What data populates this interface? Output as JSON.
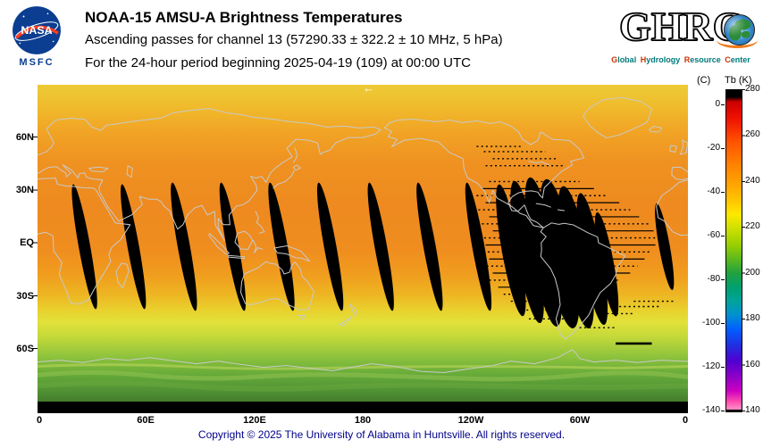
{
  "header": {
    "title": "NOAA-15 AMSU-A Brightness Temperatures",
    "line2": "Ascending passes for channel 13 (57290.33 ± 322.2 ± 10 MHz, 5 hPa)",
    "line3": "For the 24-hour period beginning 2025-04-19 (109) at 00:00 UTC",
    "nasa": {
      "wordmark": "NASA",
      "center": "MSFC"
    },
    "ghrc": {
      "wordmark": "GHRC",
      "sub_words": [
        "Global",
        "Hydrology",
        "Resource",
        "Center"
      ]
    }
  },
  "map": {
    "lat_labels": [
      "60N",
      "30N",
      "EQ",
      "30S",
      "60S"
    ],
    "lon_labels": [
      "0",
      "60E",
      "120E",
      "180",
      "120W",
      "60W",
      "0"
    ],
    "arrow_marker": "←"
  },
  "colorbar": {
    "unit_left": "(C)",
    "unit_right": "Tb (K)",
    "ticks_c": [
      "0",
      "-20",
      "-40",
      "-60",
      "-80",
      "-100",
      "-120",
      "-140"
    ],
    "ticks_k": [
      "280",
      "260",
      "240",
      "220",
      "200",
      "180",
      "160",
      "140"
    ]
  },
  "footer": {
    "copyright": "Copyright © 2025 The University of Alabama in Huntsville. All rights reserved."
  },
  "chart_data": {
    "type": "heatmap",
    "title": "NOAA-15 AMSU-A Brightness Temperatures",
    "subtitle": "Ascending passes for channel 13 (57290.33 ± 322.2 ± 10 MHz, 5 hPa)",
    "period": "24-hour period beginning 2025-04-19 (109) at 00:00 UTC",
    "satellite": "NOAA-15",
    "instrument": "AMSU-A",
    "channel": "13",
    "frequency_mhz": "57290.33 ± 322.2 ± 10",
    "pressure_level_hpa": 5,
    "projection": "equirectangular, longitude 0-360E, latitude 90N-90S",
    "x_ticks_deg": [
      0,
      60,
      120,
      180,
      240,
      300,
      360
    ],
    "x_tick_labels": [
      "0",
      "60E",
      "120E",
      "180",
      "120W",
      "60W",
      "0"
    ],
    "y_ticks_deg": [
      60,
      30,
      0,
      -30,
      -60
    ],
    "y_tick_labels": [
      "60N",
      "30N",
      "EQ",
      "30S",
      "60S"
    ],
    "colorbar_range_k": [
      140,
      280
    ],
    "colorbar_ticks_k": [
      280,
      260,
      240,
      220,
      200,
      180,
      160,
      140
    ],
    "colorbar_ticks_c": [
      0,
      -20,
      -40,
      -60,
      -80,
      -100,
      -120,
      -140
    ],
    "colorbar_palette": [
      {
        "v": 280,
        "c": "#000000"
      },
      {
        "v": 277,
        "c": "#000000"
      },
      {
        "v": 275,
        "c": "#cc0000"
      },
      {
        "v": 268,
        "c": "#ee1000"
      },
      {
        "v": 258,
        "c": "#ff5000"
      },
      {
        "v": 248,
        "c": "#ff8000"
      },
      {
        "v": 240,
        "c": "#ffa000"
      },
      {
        "v": 232,
        "c": "#ffc400"
      },
      {
        "v": 226,
        "c": "#ffe800"
      },
      {
        "v": 220,
        "c": "#d0e000"
      },
      {
        "v": 213,
        "c": "#9cd000"
      },
      {
        "v": 206,
        "c": "#58b820"
      },
      {
        "v": 200,
        "c": "#20a040"
      },
      {
        "v": 194,
        "c": "#00a070"
      },
      {
        "v": 188,
        "c": "#00a49c"
      },
      {
        "v": 182,
        "c": "#0090d0"
      },
      {
        "v": 176,
        "c": "#0060ff"
      },
      {
        "v": 169,
        "c": "#2030e0"
      },
      {
        "v": 162,
        "c": "#5000d0"
      },
      {
        "v": 155,
        "c": "#9000c8"
      },
      {
        "v": 149,
        "c": "#cc00c0"
      },
      {
        "v": 144,
        "c": "#ff50b0"
      },
      {
        "v": 141,
        "c": "#ff90c8"
      },
      {
        "v": 140.5,
        "c": "#000000"
      },
      {
        "v": 140,
        "c": "#000000"
      }
    ],
    "approx_zonal_mean_tb_k": [
      {
        "lat": 85,
        "tb": 233
      },
      {
        "lat": 70,
        "tb": 238
      },
      {
        "lat": 55,
        "tb": 241
      },
      {
        "lat": 40,
        "tb": 243
      },
      {
        "lat": 20,
        "tb": 244
      },
      {
        "lat": 0,
        "tb": 244
      },
      {
        "lat": -15,
        "tb": 242
      },
      {
        "lat": -28,
        "tb": 236
      },
      {
        "lat": -35,
        "tb": 228
      },
      {
        "lat": -45,
        "tb": 222
      },
      {
        "lat": -55,
        "tb": 215
      },
      {
        "lat": -65,
        "tb": 208
      },
      {
        "lat": -78,
        "tb": 204
      }
    ],
    "no_data_swaths": [
      {
        "lon": 26,
        "lat": -2,
        "rx": 3.2,
        "ry": 36,
        "tilt": -10
      },
      {
        "lon": 53,
        "lat": -2,
        "rx": 3.2,
        "ry": 36,
        "tilt": -10
      },
      {
        "lon": 81,
        "lat": -2,
        "rx": 3.4,
        "ry": 37,
        "tilt": -10
      },
      {
        "lon": 108,
        "lat": -2,
        "rx": 3.4,
        "ry": 37,
        "tilt": -10
      },
      {
        "lon": 135,
        "lat": -2,
        "rx": 3.4,
        "ry": 37,
        "tilt": -10
      },
      {
        "lon": 162,
        "lat": -2,
        "rx": 3.4,
        "ry": 37,
        "tilt": -10
      },
      {
        "lon": 190,
        "lat": -2,
        "rx": 3.4,
        "ry": 37,
        "tilt": -10
      },
      {
        "lon": 217,
        "lat": -2,
        "rx": 3.4,
        "ry": 37,
        "tilt": -10
      },
      {
        "lon": 244,
        "lat": -2,
        "rx": 3.4,
        "ry": 37,
        "tilt": -10
      },
      {
        "lon": 262,
        "lat": -4,
        "rx": 5,
        "ry": 38,
        "tilt": -10
      },
      {
        "lon": 271,
        "lat": -5,
        "rx": 6,
        "ry": 41,
        "tilt": -10
      },
      {
        "lon": 280,
        "lat": -5,
        "rx": 7,
        "ry": 43,
        "tilt": -10
      },
      {
        "lon": 289,
        "lat": -6,
        "rx": 8,
        "ry": 43,
        "tilt": -10
      },
      {
        "lon": 298,
        "lat": -8,
        "rx": 7,
        "ry": 41,
        "tilt": -10
      },
      {
        "lon": 307,
        "lat": -9,
        "rx": 5.5,
        "ry": 38,
        "tilt": -10
      },
      {
        "lon": 315,
        "lat": -12,
        "rx": 4,
        "ry": 30,
        "tilt": -10
      },
      {
        "lon": 347,
        "lat": -2,
        "rx": 3,
        "ry": 25,
        "tilt": -10
      }
    ],
    "data_streaks": [
      {
        "lat": 55,
        "lon1": 243,
        "lon2": 268,
        "dotted": true,
        "w": 0.7
      },
      {
        "lat": 52,
        "lon1": 247,
        "lon2": 281,
        "dotted": true,
        "w": 0.7
      },
      {
        "lat": 48,
        "lon1": 252,
        "lon2": 287,
        "dotted": true,
        "w": 0.7
      },
      {
        "lat": 44,
        "lon1": 248,
        "lon2": 292,
        "dotted": true,
        "w": 0.7
      },
      {
        "lat": 35,
        "lon1": 250,
        "lon2": 300,
        "dotted": true,
        "w": 0.7
      },
      {
        "lat": 31,
        "lon1": 246,
        "lon2": 308,
        "w": 0.6
      },
      {
        "lat": 27,
        "lon1": 243,
        "lon2": 315,
        "dotted": true,
        "w": 0.7
      },
      {
        "lat": 23,
        "lon1": 248,
        "lon2": 322,
        "w": 0.6
      },
      {
        "lat": 19,
        "lon1": 244,
        "lon2": 328,
        "dotted": true,
        "w": 0.7
      },
      {
        "lat": 15,
        "lon1": 250,
        "lon2": 333,
        "w": 0.6
      },
      {
        "lat": 11,
        "lon1": 246,
        "lon2": 338,
        "dotted": true,
        "w": 0.7
      },
      {
        "lat": 7,
        "lon1": 252,
        "lon2": 341,
        "w": 0.6
      },
      {
        "lat": 3,
        "lon1": 242,
        "lon2": 344,
        "dotted": true,
        "w": 0.7
      },
      {
        "lat": -1,
        "lon1": 248,
        "lon2": 342,
        "w": 0.6
      },
      {
        "lat": -5,
        "lon1": 244,
        "lon2": 340,
        "dotted": true,
        "w": 0.7
      },
      {
        "lat": -9,
        "lon1": 250,
        "lon2": 336,
        "w": 0.6
      },
      {
        "lat": -13,
        "lon1": 246,
        "lon2": 332,
        "dotted": true,
        "w": 0.7
      },
      {
        "lat": -17,
        "lon1": 252,
        "lon2": 328,
        "w": 0.6
      },
      {
        "lat": -21,
        "lon1": 250,
        "lon2": 322,
        "dotted": true,
        "w": 0.7
      },
      {
        "lat": -25,
        "lon1": 255,
        "lon2": 318,
        "w": 0.6
      },
      {
        "lat": -29,
        "lon1": 258,
        "lon2": 314,
        "dotted": true,
        "w": 0.7
      },
      {
        "lat": -33,
        "lon1": 262,
        "lon2": 310,
        "dotted": true,
        "w": 0.7
      },
      {
        "lat": -33,
        "lon1": 330,
        "lon2": 352,
        "dotted": true,
        "w": 0.7
      },
      {
        "lat": -36,
        "lon1": 322,
        "lon2": 344,
        "dotted": true,
        "w": 0.7
      },
      {
        "lat": -38,
        "lon1": 268,
        "lon2": 306,
        "dotted": true,
        "w": 0.7
      },
      {
        "lat": -40,
        "lon1": 310,
        "lon2": 330,
        "dotted": true,
        "w": 0.7
      },
      {
        "lat": -43,
        "lon1": 272,
        "lon2": 300,
        "dotted": true,
        "w": 0.7
      },
      {
        "lat": -48,
        "lon1": 300,
        "lon2": 320,
        "dotted": true,
        "w": 0.7
      },
      {
        "lat": -57,
        "lon1": 320,
        "lon2": 340,
        "w": 1.3
      }
    ],
    "notes": "Black slanted slivers are gaps between ascending orbital swaths; dense black region with horizontal streaks near 60W-120W indicates missing/bad data."
  }
}
